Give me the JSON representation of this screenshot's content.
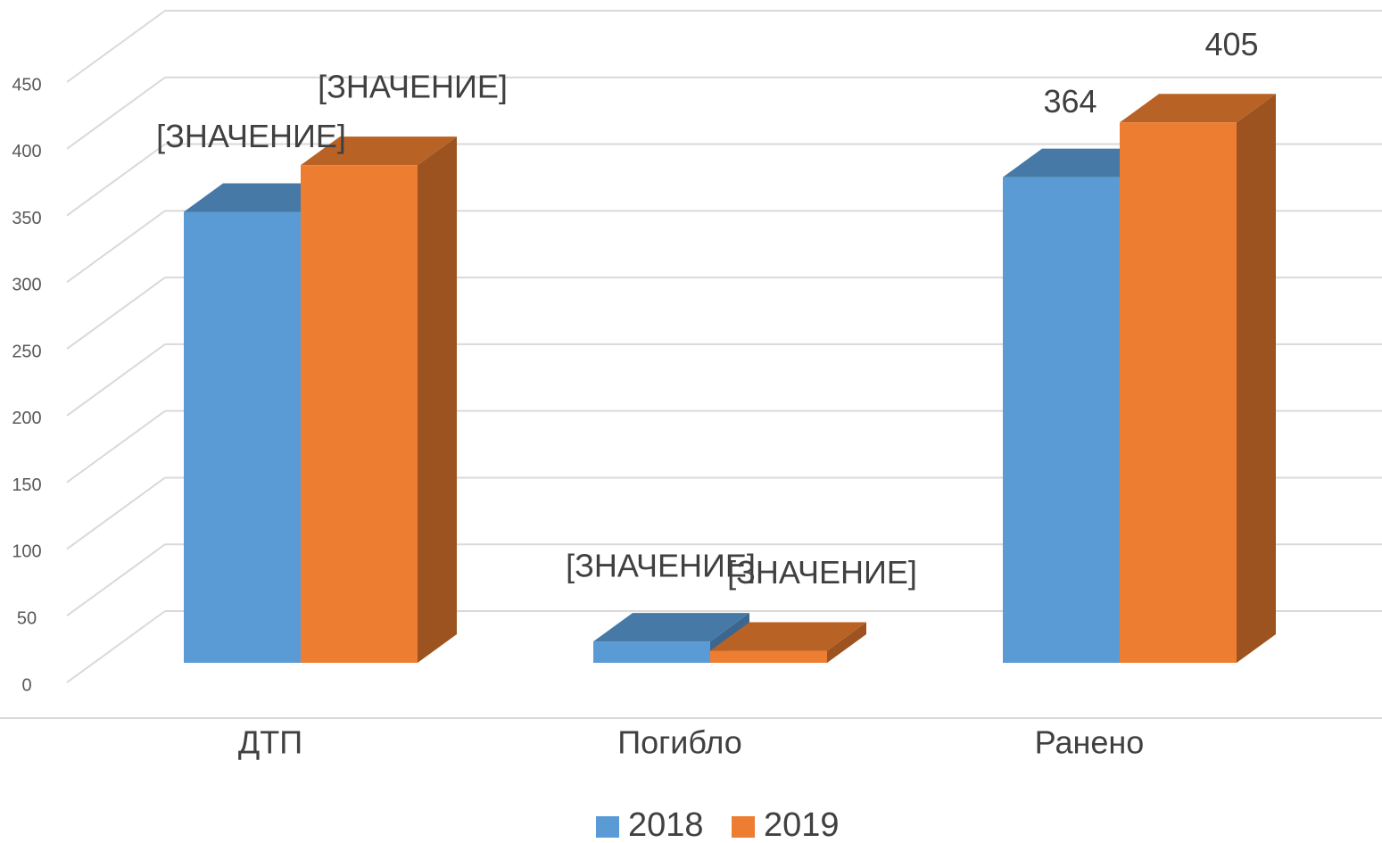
{
  "chart_data": {
    "type": "bar3d",
    "categories": [
      "ДТП",
      "Погибло",
      "Ранено"
    ],
    "series": [
      {
        "name": "2018",
        "color": "#5b9bd5",
        "values": [
          338,
          16,
          364
        ],
        "value_labels": [
          "[ЗНАЧЕНИЕ]",
          "[ЗНАЧЕНИЕ]",
          "364"
        ]
      },
      {
        "name": "2019",
        "color": "#ed7d31",
        "values": [
          373,
          9,
          405
        ],
        "value_labels": [
          "[ЗНАЧЕНИЕ]",
          "[ЗНАЧЕНИЕ]",
          "405"
        ]
      }
    ],
    "ylim": [
      0,
      450
    ],
    "yticks": [
      0,
      50,
      100,
      150,
      200,
      250,
      300,
      350,
      400,
      450
    ],
    "grid": true,
    "legend": "bottom"
  }
}
